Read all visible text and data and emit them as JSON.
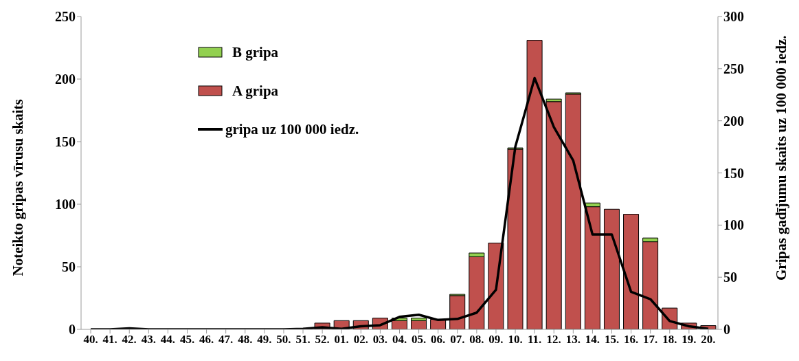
{
  "chart_data": {
    "type": "bar",
    "stacked": true,
    "categories": [
      "40.",
      "41.",
      "42.",
      "43.",
      "44.",
      "45.",
      "46.",
      "47.",
      "48.",
      "49.",
      "50.",
      "51.",
      "52.",
      "01.",
      "02.",
      "03.",
      "04.",
      "05.",
      "06.",
      "07.",
      "08.",
      "09.",
      "10.",
      "11.",
      "12.",
      "13.",
      "14.",
      "15.",
      "16.",
      "17.",
      "18.",
      "19.",
      "20."
    ],
    "ylabel": "Noteikto gripas  vīrusu  skaits",
    "y2label": "Gripas gadījumu skaits uz 100 000 iedz.",
    "ylim": [
      0,
      250
    ],
    "yticks": [
      0,
      50,
      100,
      150,
      200,
      250
    ],
    "y2lim": [
      0,
      300
    ],
    "y2ticks": [
      0,
      50,
      100,
      150,
      200,
      250,
      300
    ],
    "legend": "top left",
    "marker": "none",
    "line_style": "solid",
    "series": [
      {
        "name": "A gripa",
        "color": "#c0504d",
        "values": [
          0,
          0,
          0,
          0,
          0,
          0,
          0,
          0,
          0,
          0,
          0,
          0,
          5,
          7,
          7,
          9,
          7,
          7,
          8,
          27,
          58,
          69,
          144,
          231,
          182,
          188,
          98,
          96,
          92,
          70,
          17,
          5,
          3
        ]
      },
      {
        "name": "B gripa",
        "color": "#92d050",
        "values": [
          0,
          0,
          0,
          0,
          0,
          0,
          0,
          0,
          0,
          0,
          0,
          0,
          0,
          0,
          0,
          0,
          2,
          2,
          0,
          1,
          3,
          0,
          1,
          0,
          2,
          1,
          3,
          0,
          0,
          3,
          0,
          0,
          0
        ]
      },
      {
        "name": "gripa uz 100 000 iedz.",
        "type": "line",
        "axis": "y2",
        "color": "#000000",
        "values": [
          0,
          0,
          1,
          0,
          0,
          0,
          0,
          0,
          0,
          0,
          0,
          0.5,
          2,
          0.5,
          3,
          4,
          12,
          14,
          9,
          10,
          16,
          38,
          175,
          241,
          194,
          162,
          91,
          91,
          36,
          29,
          8,
          3,
          0.5
        ]
      }
    ]
  }
}
